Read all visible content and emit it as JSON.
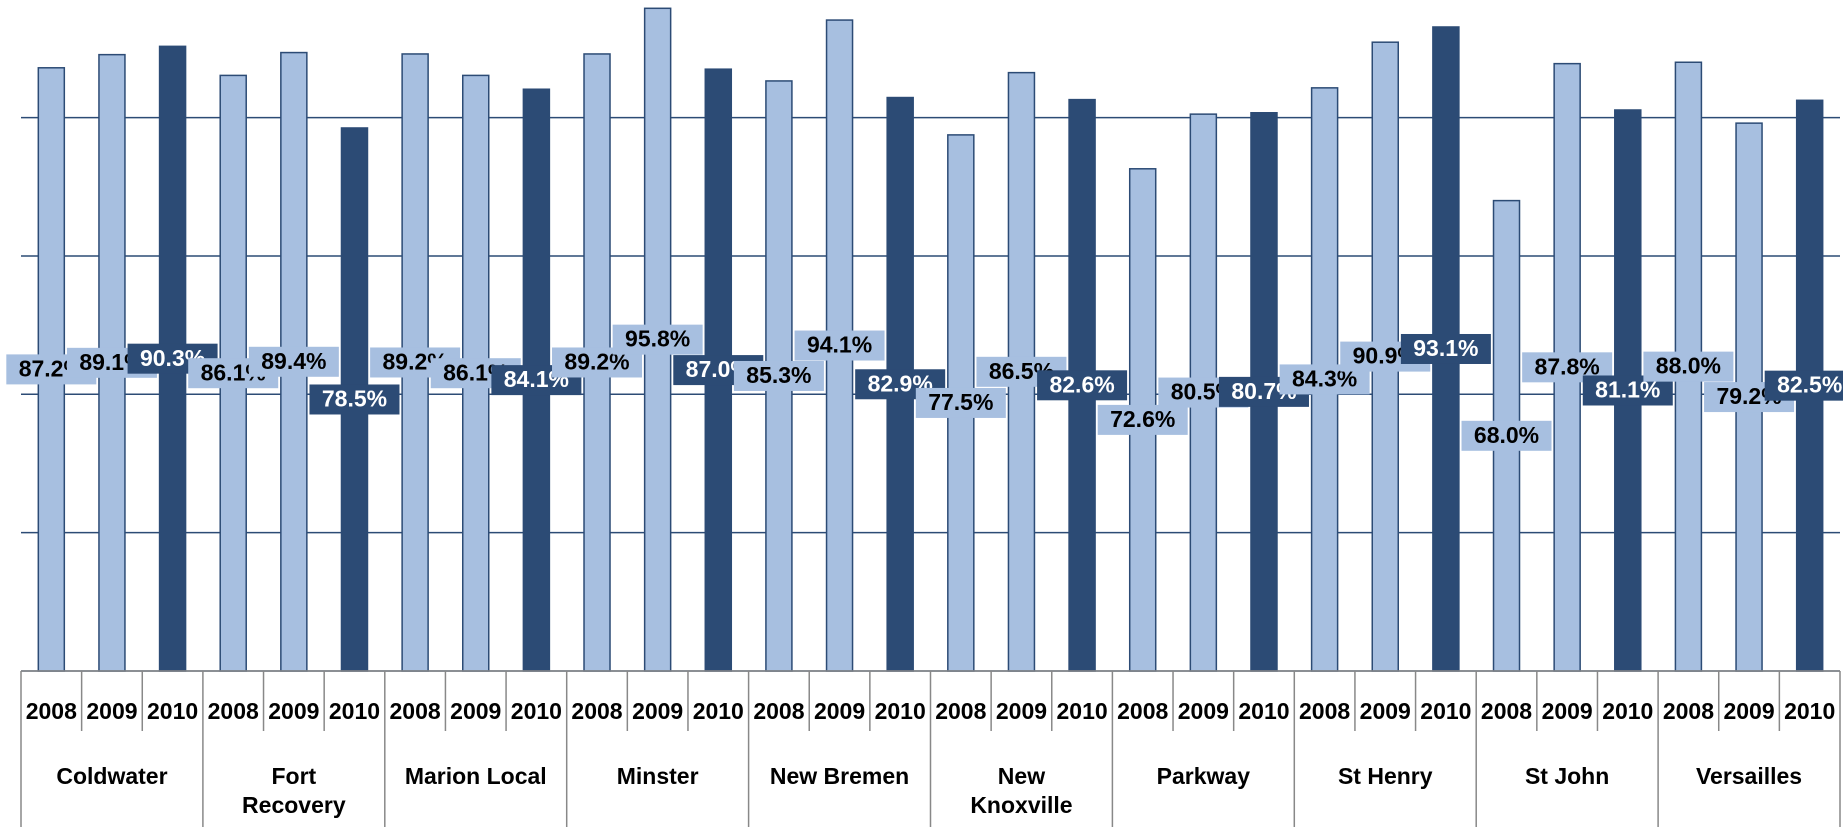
{
  "chart_data": {
    "type": "bar",
    "categories": [
      "Coldwater",
      "Fort\nRecovery",
      "Marion Local",
      "Minster",
      "New Bremen",
      "New\nKnoxville",
      "Parkway",
      "St Henry",
      "St John",
      "Versailles"
    ],
    "series": [
      {
        "name": "2008",
        "color": "#a7bfe0",
        "values": [
          87.2,
          86.1,
          89.2,
          89.2,
          85.3,
          77.5,
          72.6,
          84.3,
          68.0,
          88.0
        ],
        "value_labels": [
          "87.2%",
          "86.1%",
          "89.2%",
          "89.2%",
          "85.3%",
          "77.5%",
          "72.6%",
          "84.3%",
          "68.0%",
          "88.0%"
        ]
      },
      {
        "name": "2009",
        "color": "#a7bfe0",
        "values": [
          89.1,
          89.4,
          86.1,
          95.8,
          94.1,
          86.5,
          80.5,
          90.9,
          87.8,
          79.2
        ],
        "value_labels": [
          "89.1%",
          "89.4%",
          "86.1%",
          "95.8%",
          "94.1%",
          "86.5%",
          "80.5%",
          "90.9%",
          "87.8%",
          "79.2%"
        ]
      },
      {
        "name": "2010",
        "color": "#2c4b75",
        "values": [
          90.3,
          78.5,
          84.1,
          87.0,
          82.9,
          82.6,
          80.7,
          93.1,
          81.1,
          82.5
        ],
        "value_labels": [
          "90.3%",
          "78.5%",
          "84.1%",
          "87.0%",
          "82.9%",
          "82.6%",
          "80.7%",
          "93.1%",
          "81.1%",
          "82.5%"
        ]
      }
    ],
    "ylim": [
      0,
      97
    ],
    "yticks": [
      0,
      20,
      40,
      60,
      80
    ],
    "grid": true
  }
}
